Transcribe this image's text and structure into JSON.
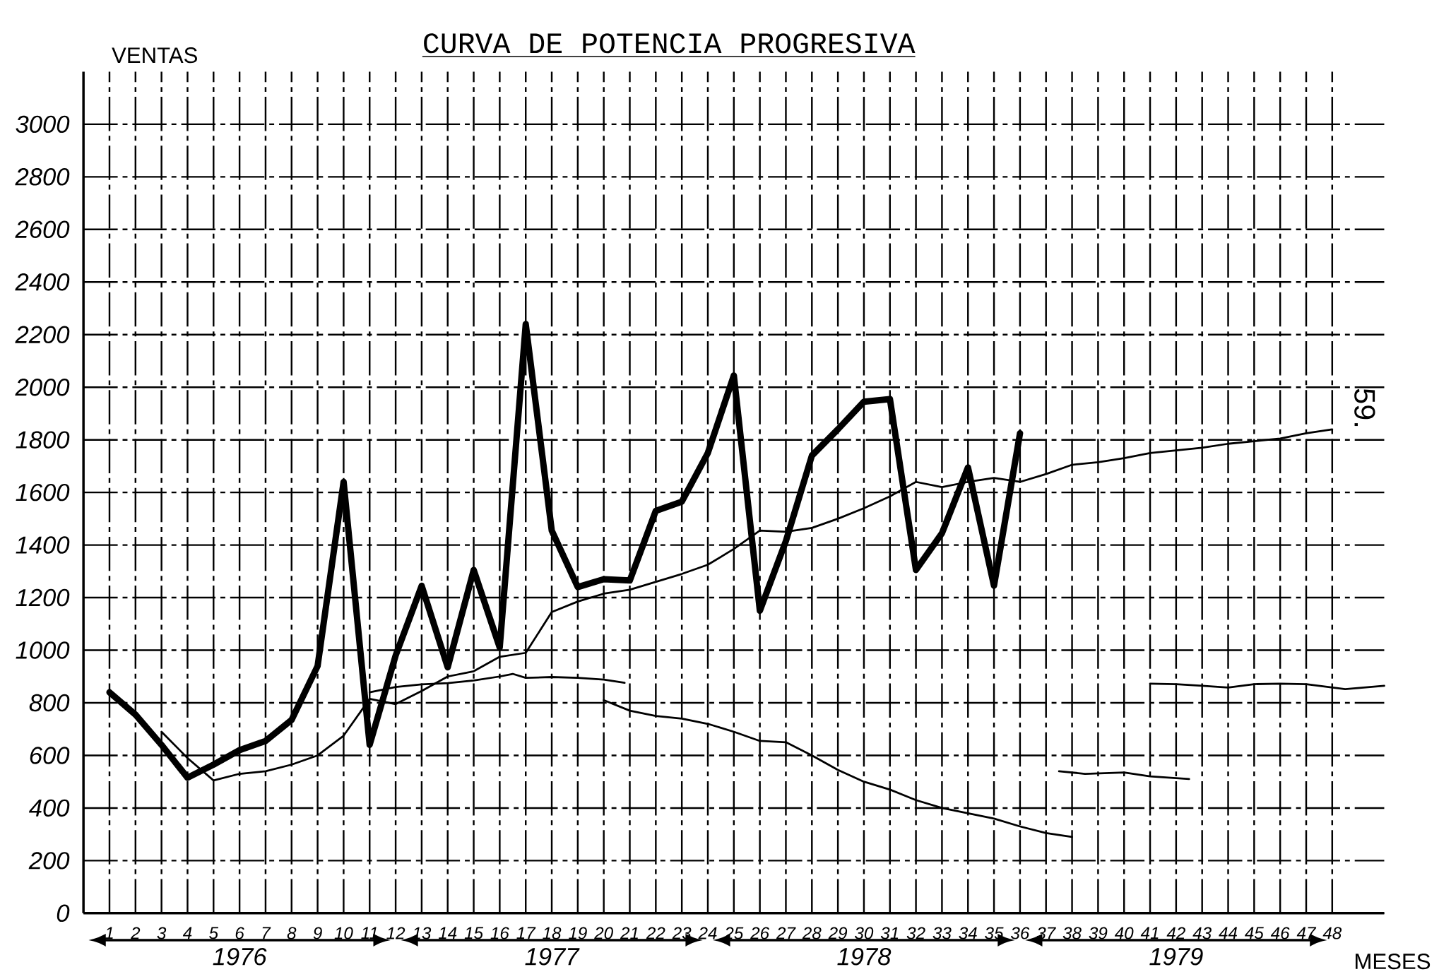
{
  "chart_data": {
    "type": "line",
    "title": "CURVA DE POTENCIA PROGRESIVA",
    "xlabel": "MESES",
    "ylabel": "VENTAS",
    "annotations": [
      "1976",
      "1977",
      "1978",
      "1979",
      "59."
    ],
    "xlim": [
      0,
      50
    ],
    "ylim": [
      0,
      3200
    ],
    "xticks": [
      1,
      2,
      3,
      4,
      5,
      6,
      7,
      8,
      9,
      10,
      11,
      12,
      13,
      14,
      15,
      16,
      17,
      18,
      19,
      20,
      21,
      22,
      23,
      24,
      25,
      26,
      27,
      28,
      29,
      30,
      31,
      32,
      33,
      34,
      35,
      36,
      37,
      38,
      39,
      40,
      41,
      42,
      43,
      44,
      45,
      46,
      47,
      48
    ],
    "yticks": [
      0,
      200,
      400,
      600,
      800,
      1000,
      1200,
      1400,
      1600,
      1800,
      2000,
      2200,
      2400,
      2600,
      2800,
      3000
    ],
    "grid": true,
    "marker": "none",
    "line_style": "solid",
    "series": [
      {
        "color": "#000000",
        "x": [
          1,
          2,
          3,
          4,
          5,
          6,
          7,
          8,
          9,
          10,
          11,
          12,
          13,
          14,
          15,
          16,
          17,
          18,
          19,
          20,
          21,
          22,
          23,
          24,
          25,
          26,
          27,
          28,
          29,
          30,
          31,
          32,
          33,
          34,
          35,
          36
        ],
        "values": [
          840,
          755,
          640,
          515,
          565,
          620,
          655,
          735,
          940,
          1640,
          640,
          980,
          1245,
          935,
          1305,
          1010,
          2240,
          1455,
          1240,
          1270,
          1265,
          1530,
          1565,
          1750,
          2045,
          1150,
          1415,
          1740,
          1840,
          1945,
          1955,
          1305,
          1445,
          1695,
          1245,
          1825
        ]
      },
      {
        "color": "#000000",
        "x": [
          3,
          4,
          5,
          6,
          7,
          8,
          9,
          10,
          11,
          12,
          13,
          14,
          15,
          16,
          17,
          18,
          19,
          20,
          21,
          22,
          23,
          24,
          25,
          26,
          27,
          28,
          29,
          30,
          31,
          32,
          33,
          34,
          35,
          36,
          37,
          38,
          39,
          40,
          41,
          42,
          43,
          44,
          45,
          46,
          47,
          48
        ],
        "values": [
          690,
          590,
          505,
          530,
          540,
          565,
          600,
          675,
          815,
          795,
          845,
          900,
          920,
          975,
          990,
          1145,
          1185,
          1215,
          1230,
          1260,
          1290,
          1325,
          1385,
          1455,
          1450,
          1465,
          1500,
          1540,
          1585,
          1640,
          1620,
          1640,
          1655,
          1640,
          1670,
          1705,
          1715,
          1730,
          1750,
          1760,
          1770,
          1785,
          1795,
          1805,
          1825,
          1840
        ]
      },
      {
        "color": "#000000",
        "x": [
          11,
          12,
          13,
          14,
          15,
          16,
          16.5,
          17,
          18,
          19,
          20,
          20.8
        ],
        "values": [
          840,
          860,
          870,
          875,
          885,
          900,
          910,
          895,
          898,
          895,
          888,
          876
        ]
      },
      {
        "color": "#000000",
        "x": [
          20,
          21,
          22,
          23,
          24,
          25,
          26,
          27,
          28,
          29,
          30,
          31,
          32,
          33,
          34,
          35,
          36,
          37,
          38
        ],
        "values": [
          810,
          770,
          750,
          740,
          720,
          690,
          655,
          650,
          600,
          545,
          500,
          470,
          430,
          400,
          380,
          360,
          330,
          305,
          290
        ]
      },
      {
        "color": "#000000",
        "x": [
          37.5,
          38.5,
          40,
          41,
          42.5
        ],
        "values": [
          540,
          530,
          535,
          520,
          510
        ]
      },
      {
        "color": "#000000",
        "x": [
          41,
          42,
          43,
          44,
          45,
          46,
          47,
          48.5,
          50
        ],
        "values": [
          873,
          871,
          865,
          858,
          871,
          873,
          871,
          852,
          865
        ]
      }
    ]
  }
}
